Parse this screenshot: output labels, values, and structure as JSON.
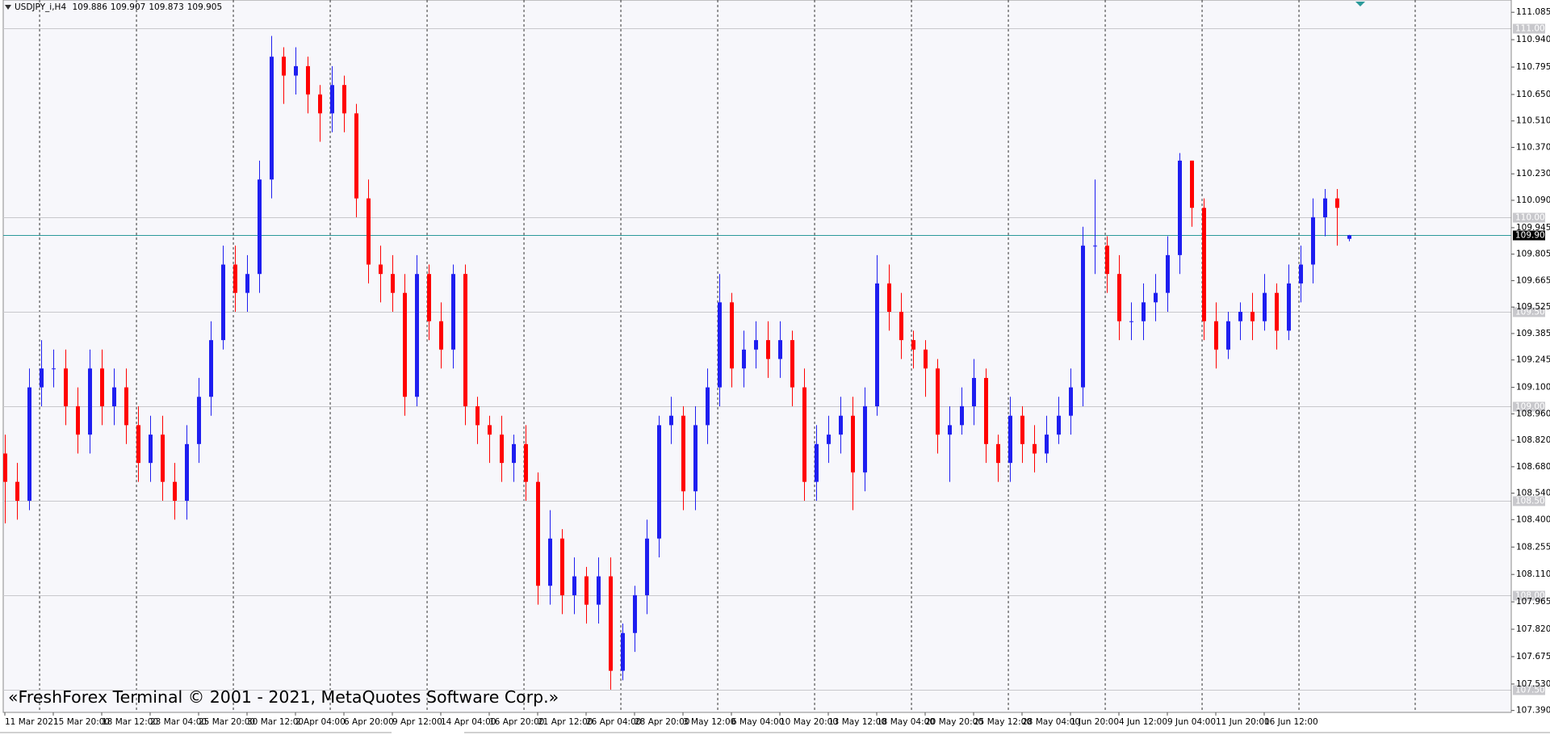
{
  "chart_data": {
    "type": "candlestick",
    "title": "USDJPY_i,H4",
    "watermark": "«FreshForex Terminal © 2001 - 2021, MetaQuotes Software Corp.»",
    "categories": [
      "11 Mar 2021",
      null,
      null,
      null,
      "15 Mar 20:00",
      null,
      null,
      null,
      "18 Mar 12:00",
      null,
      null,
      null,
      "23 Mar 04:00",
      null,
      null,
      null,
      "25 Mar 20:00",
      null,
      null,
      null,
      "30 Mar 12:00",
      null,
      null,
      null,
      "2 Apr 04:00",
      null,
      null,
      null,
      "6 Apr 20:00",
      null,
      null,
      null,
      "9 Apr 12:00",
      null,
      null,
      null,
      "14 Apr 04:00",
      null,
      null,
      null,
      "16 Apr 20:00",
      null,
      null,
      null,
      "21 Apr 12:00",
      null,
      null,
      null,
      "26 Apr 04:00",
      null,
      null,
      null,
      "28 Apr 20:00",
      null,
      null,
      null,
      "3 May 12:00",
      null,
      null,
      null,
      "6 May 04:00",
      null,
      null,
      null,
      "10 May 20:00",
      null,
      null,
      null,
      "13 May 12:00",
      null,
      null,
      null,
      "18 May 04:00",
      null,
      null,
      null,
      "20 May 20:00",
      null,
      null,
      null,
      "25 May 12:00",
      null,
      null,
      null,
      "28 May 04:00",
      null,
      null,
      null,
      "1 Jun 20:00",
      null,
      null,
      null,
      "4 Jun 12:00",
      null,
      null,
      null,
      "9 Jun 04:00",
      null,
      null,
      null,
      "11 Jun 20:00",
      null,
      null,
      null,
      "16 Jun 12:00",
      null,
      null,
      null,
      null,
      null,
      null,
      null
    ],
    "open": [
      108.75,
      108.6,
      108.5,
      109.1,
      109.2,
      109.2,
      109.0,
      108.85,
      109.2,
      109.0,
      109.1,
      108.9,
      108.7,
      108.85,
      108.6,
      108.5,
      108.8,
      109.05,
      109.35,
      109.75,
      109.6,
      109.7,
      110.2,
      110.85,
      110.75,
      110.8,
      110.65,
      110.55,
      110.7,
      110.55,
      110.1,
      109.75,
      109.7,
      109.6,
      109.05,
      109.7,
      109.45,
      109.3,
      109.7,
      109.0,
      108.9,
      108.85,
      108.7,
      108.8,
      108.6,
      108.05,
      108.3,
      108.0,
      108.1,
      107.95,
      108.1,
      107.6,
      107.8,
      108.0,
      108.3,
      108.9,
      108.95,
      108.55,
      108.9,
      109.1,
      109.55,
      109.2,
      109.3,
      109.35,
      109.25,
      109.35,
      109.1,
      108.6,
      108.8,
      108.85,
      108.95,
      108.65,
      109.0,
      109.65,
      109.5,
      109.35,
      109.3,
      109.2,
      108.85,
      108.9,
      109.0,
      109.15,
      108.8,
      108.7,
      108.95,
      108.8,
      108.75,
      108.85,
      108.95,
      109.1,
      109.85,
      109.85,
      109.7,
      109.45,
      109.45,
      109.55,
      109.6,
      109.8,
      110.3,
      110.05,
      109.45,
      109.3,
      109.45,
      109.5,
      109.45,
      109.6,
      109.4,
      109.65,
      109.75,
      110.0,
      110.1,
      109.886
    ],
    "high": [
      108.85,
      108.7,
      109.2,
      109.35,
      109.3,
      109.3,
      109.1,
      109.3,
      109.3,
      109.2,
      109.2,
      109.0,
      108.95,
      108.95,
      108.7,
      108.9,
      109.15,
      109.45,
      109.85,
      109.85,
      109.8,
      110.3,
      110.96,
      110.9,
      110.9,
      110.85,
      110.7,
      110.8,
      110.75,
      110.6,
      110.2,
      109.85,
      109.8,
      109.7,
      109.8,
      109.75,
      109.55,
      109.75,
      109.75,
      109.05,
      108.95,
      108.95,
      108.85,
      108.9,
      108.65,
      108.45,
      108.35,
      108.2,
      108.15,
      108.2,
      108.2,
      107.85,
      108.05,
      108.4,
      108.95,
      109.05,
      109.0,
      109.0,
      109.2,
      109.7,
      109.6,
      109.4,
      109.45,
      109.45,
      109.45,
      109.4,
      109.2,
      108.9,
      108.95,
      109.05,
      109.05,
      109.1,
      109.8,
      109.75,
      109.6,
      109.4,
      109.35,
      109.25,
      109.0,
      109.1,
      109.25,
      109.2,
      108.85,
      109.05,
      109.0,
      108.9,
      108.95,
      109.05,
      109.2,
      109.95,
      110.2,
      109.9,
      109.8,
      109.55,
      109.65,
      109.7,
      109.9,
      110.34,
      110.3,
      110.1,
      109.55,
      109.5,
      109.55,
      109.6,
      109.7,
      109.65,
      109.75,
      109.85,
      110.1,
      110.15,
      110.15,
      109.907
    ],
    "low": [
      108.38,
      108.4,
      108.45,
      109.0,
      109.1,
      108.9,
      108.75,
      108.75,
      108.9,
      108.9,
      108.8,
      108.6,
      108.6,
      108.5,
      108.4,
      108.4,
      108.7,
      108.95,
      109.3,
      109.5,
      109.5,
      109.6,
      110.1,
      110.6,
      110.65,
      110.55,
      110.4,
      110.45,
      110.45,
      110.0,
      109.65,
      109.55,
      109.5,
      108.95,
      109.0,
      109.35,
      109.2,
      109.2,
      108.9,
      108.8,
      108.7,
      108.6,
      108.6,
      108.5,
      107.95,
      107.95,
      107.9,
      107.9,
      107.85,
      107.85,
      107.5,
      107.55,
      107.7,
      107.9,
      108.2,
      108.8,
      108.45,
      108.45,
      108.8,
      109.0,
      109.1,
      109.1,
      109.2,
      109.15,
      109.15,
      109.0,
      108.5,
      108.5,
      108.7,
      108.75,
      108.45,
      108.55,
      108.95,
      109.4,
      109.25,
      109.2,
      109.05,
      108.75,
      108.6,
      108.85,
      108.9,
      108.7,
      108.6,
      108.6,
      108.7,
      108.65,
      108.7,
      108.8,
      108.85,
      109.0,
      109.7,
      109.6,
      109.35,
      109.35,
      109.35,
      109.45,
      109.5,
      109.7,
      109.95,
      109.35,
      109.2,
      109.25,
      109.35,
      109.35,
      109.4,
      109.3,
      109.35,
      109.55,
      109.65,
      109.9,
      109.85,
      109.873
    ],
    "close": [
      108.6,
      108.5,
      109.1,
      109.2,
      109.2,
      109.0,
      108.85,
      109.2,
      109.0,
      109.1,
      108.9,
      108.7,
      108.85,
      108.6,
      108.5,
      108.8,
      109.05,
      109.35,
      109.75,
      109.6,
      109.7,
      110.2,
      110.85,
      110.75,
      110.8,
      110.65,
      110.55,
      110.7,
      110.55,
      110.1,
      109.75,
      109.7,
      109.6,
      109.05,
      109.7,
      109.45,
      109.3,
      109.7,
      109.0,
      108.9,
      108.85,
      108.7,
      108.8,
      108.6,
      108.05,
      108.3,
      108.0,
      108.1,
      107.95,
      108.1,
      107.6,
      107.8,
      108.0,
      108.3,
      108.9,
      108.95,
      108.55,
      108.9,
      109.1,
      109.55,
      109.2,
      109.3,
      109.35,
      109.25,
      109.35,
      109.1,
      108.6,
      108.8,
      108.85,
      108.95,
      108.65,
      109.0,
      109.65,
      109.5,
      109.35,
      109.3,
      109.2,
      108.85,
      108.9,
      109.0,
      109.15,
      108.8,
      108.7,
      108.95,
      108.8,
      108.75,
      108.85,
      108.95,
      109.1,
      109.85,
      109.85,
      109.7,
      109.45,
      109.45,
      109.55,
      109.6,
      109.8,
      110.3,
      110.05,
      109.45,
      109.3,
      109.45,
      109.5,
      109.45,
      109.6,
      109.4,
      109.65,
      109.75,
      110.0,
      110.1,
      110.05,
      109.905
    ],
    "up_color": "#1e1ef0",
    "down_color": "#ff0000",
    "price_line_color": "#2b9a9a",
    "level_color": "#c8c8cc",
    "ylim": [
      107.38,
      111.15
    ],
    "yticks": [
      111.085,
      {
        "value": 110.94,
        "label": "110.940"
      },
      110.795,
      {
        "value": 110.65,
        "label": "110.650"
      },
      {
        "value": 110.51,
        "label": "110.510"
      },
      {
        "value": 110.37,
        "label": "110.370"
      },
      {
        "value": 110.23,
        "label": "110.230"
      },
      {
        "value": 110.09,
        "label": "110.090"
      },
      109.945,
      109.805,
      109.665,
      109.525,
      109.385,
      109.245,
      {
        "value": 109.1,
        "label": "109.100"
      },
      {
        "value": 108.96,
        "label": "108.960"
      },
      {
        "value": 108.82,
        "label": "108.820"
      },
      {
        "value": 108.68,
        "label": "108.680"
      },
      {
        "value": 108.54,
        "label": "108.540"
      },
      {
        "value": 108.4,
        "label": "108.400"
      },
      108.255,
      {
        "value": 108.11,
        "label": "108.110"
      },
      107.965,
      {
        "value": 107.82,
        "label": "107.820"
      },
      107.675,
      {
        "value": 107.53,
        "label": "107.530"
      },
      {
        "value": 107.39,
        "label": "107.390"
      }
    ],
    "levels": [
      {
        "value": 111,
        "label": "111.000"
      },
      {
        "value": 110,
        "label": "110.000"
      },
      {
        "value": 109.5,
        "label": "109.500"
      },
      {
        "value": 109,
        "label": "109.000"
      },
      {
        "value": 108.5,
        "label": "108.500"
      },
      {
        "value": 108,
        "label": "108.000"
      },
      {
        "value": 107.5,
        "label": "107.500"
      }
    ],
    "grid": true
  }
}
